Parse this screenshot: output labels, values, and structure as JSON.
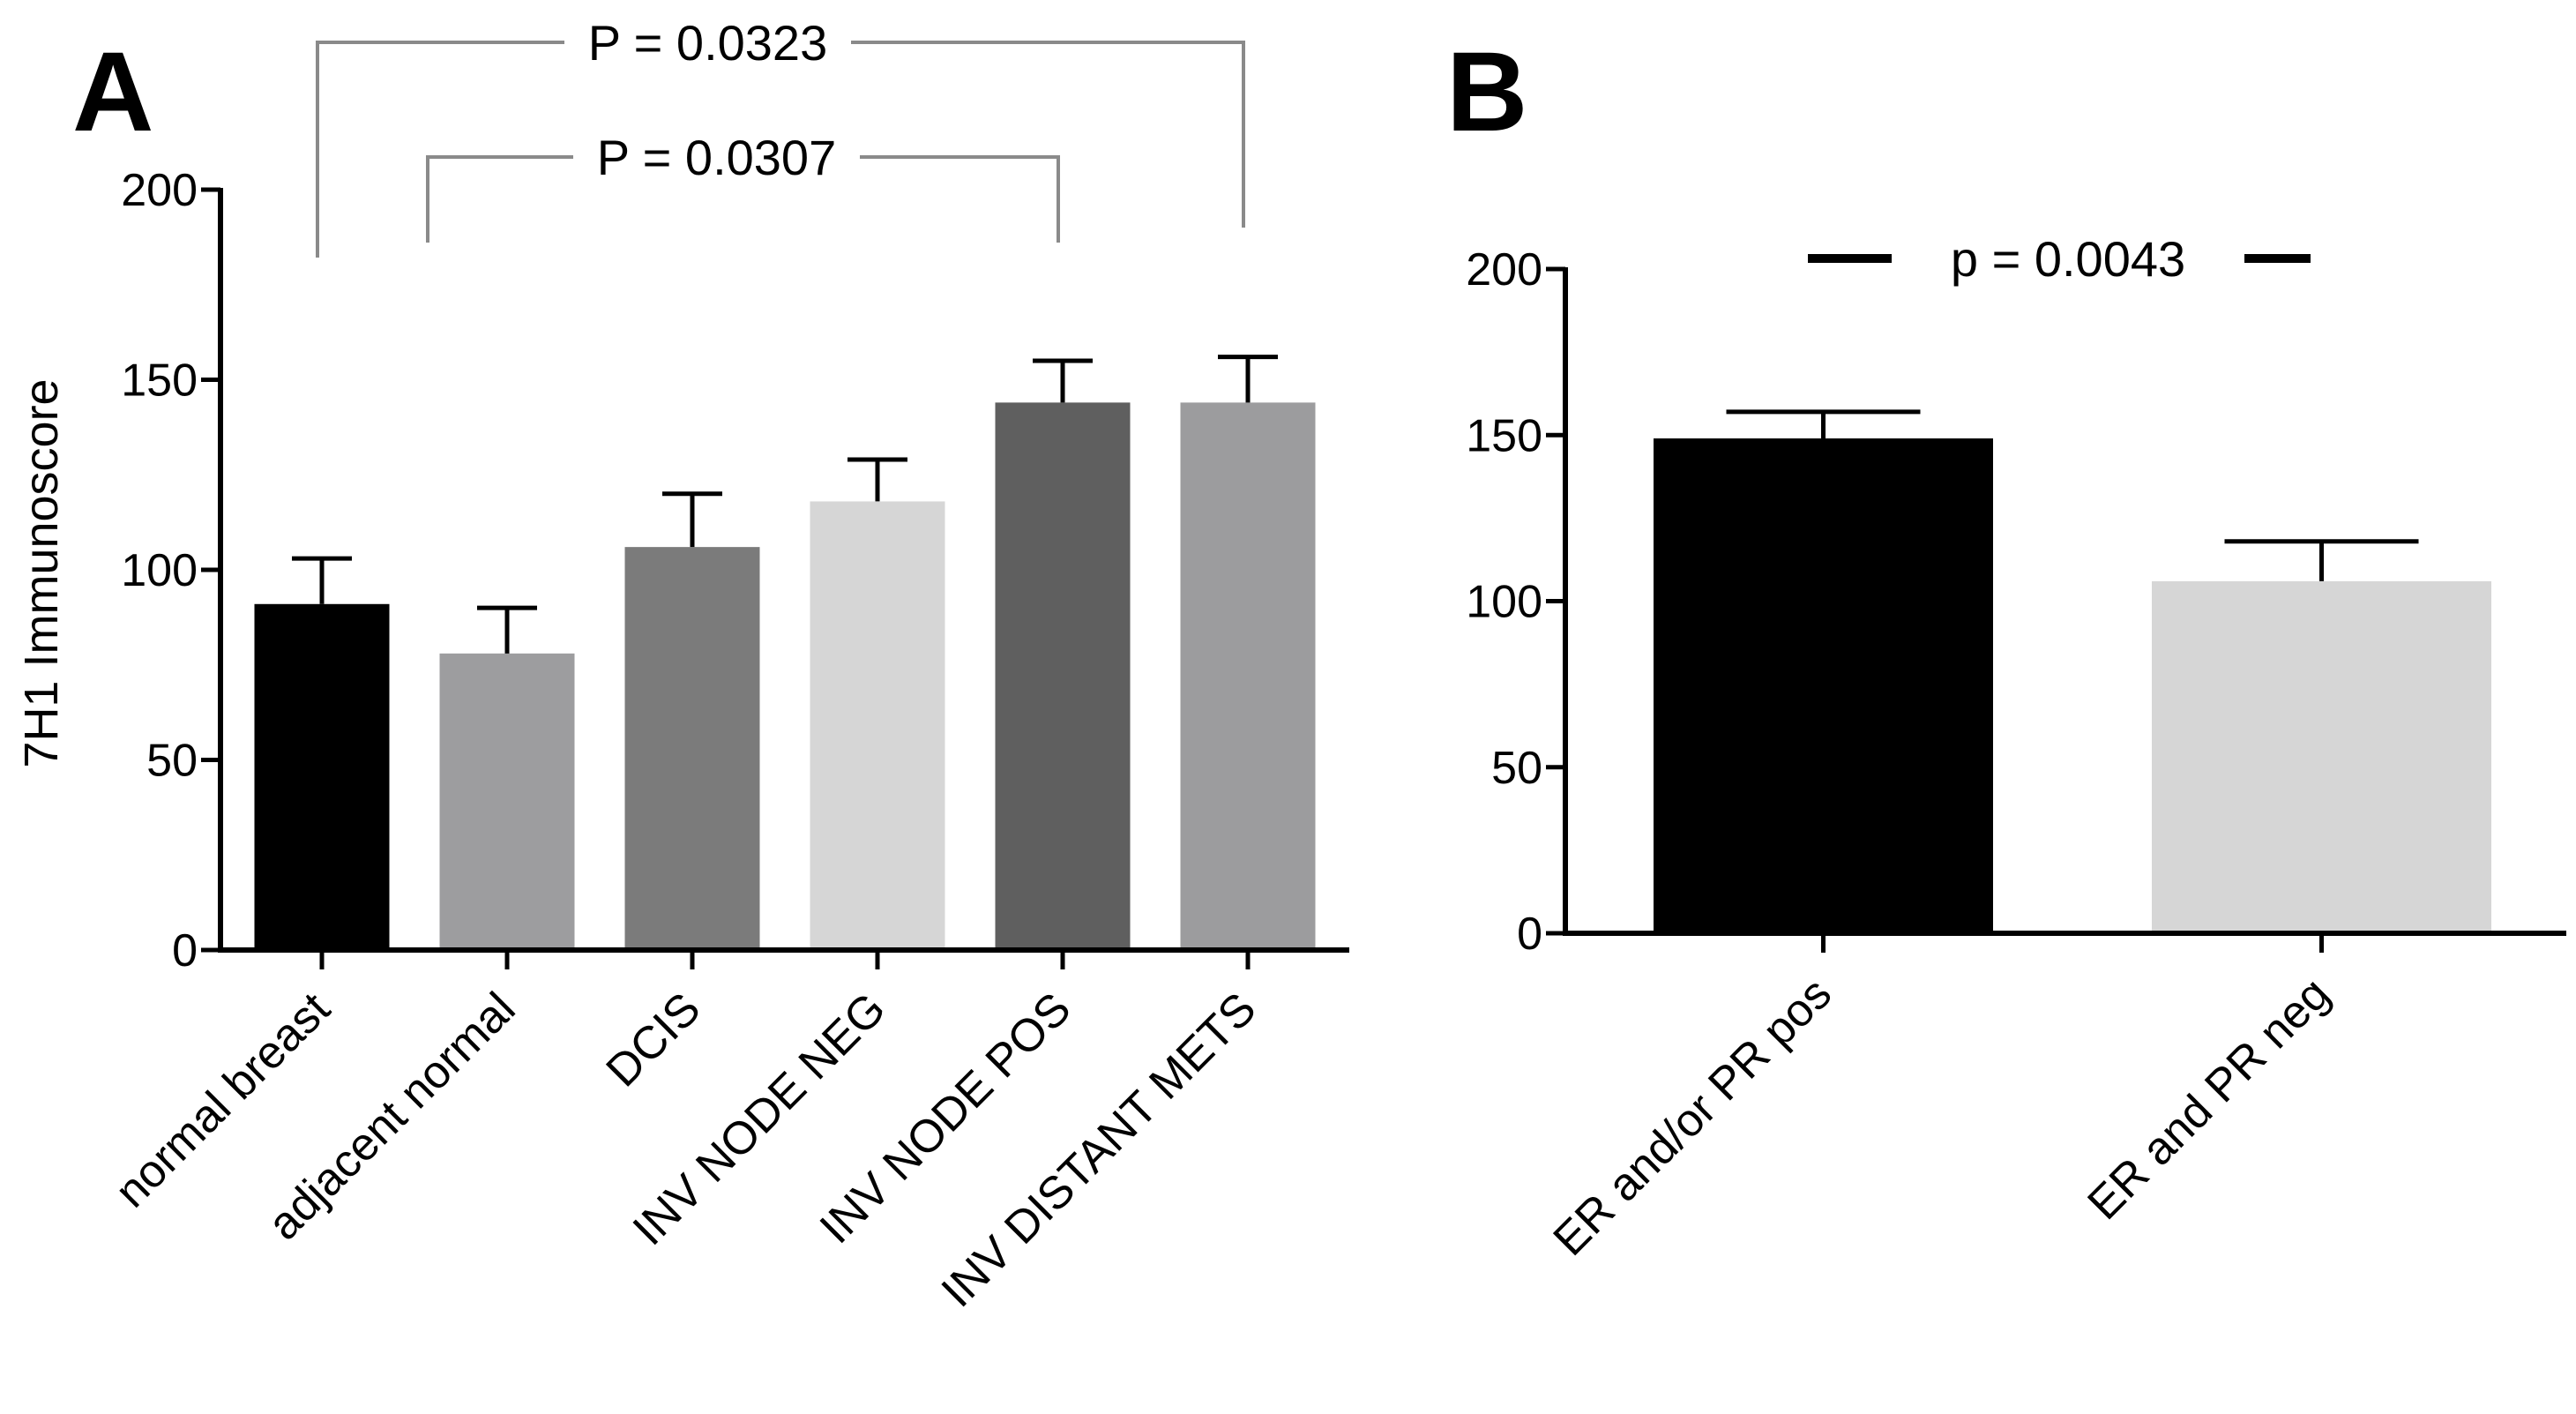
{
  "figure": {
    "panel_a_letter": "A",
    "panel_b_letter": "B"
  },
  "chart_data": [
    {
      "type": "bar",
      "panel": "A",
      "title": "",
      "xlabel": "",
      "ylabel": "7H1 Immunoscore",
      "ylim": [
        0,
        200
      ],
      "yticks": [
        "0",
        "50",
        "100",
        "150",
        "200"
      ],
      "categories": [
        "normal breast",
        "adjacent normal",
        "DCIS",
        "INV NODE NEG",
        "INV NODE POS",
        "INV DISTANT METS"
      ],
      "values": [
        91,
        78,
        106,
        118,
        144,
        144
      ],
      "errors": [
        12,
        12,
        14,
        11,
        11,
        12
      ],
      "colors": [
        "#000000",
        "#9d9d9f",
        "#7b7b7b",
        "#d6d6d6",
        "#5f5f5f",
        "#9c9c9e"
      ],
      "comparisons": [
        {
          "label": "P = 0.0323",
          "from": 0,
          "to": 5
        },
        {
          "label": "P = 0.0307",
          "from": 1,
          "to": 4
        }
      ]
    },
    {
      "type": "bar",
      "panel": "B",
      "title": "",
      "xlabel": "",
      "ylabel": "",
      "ylim": [
        0,
        200
      ],
      "yticks": [
        "0",
        "50",
        "100",
        "150",
        "200"
      ],
      "categories": [
        "ER and/or PR pos",
        "ER and PR neg"
      ],
      "values": [
        149,
        106
      ],
      "errors": [
        8,
        12
      ],
      "colors": [
        "#000000",
        "#d6d6d6"
      ],
      "comparisons": [
        {
          "label": "p = 0.0043",
          "from": 0,
          "to": 1
        }
      ]
    }
  ]
}
